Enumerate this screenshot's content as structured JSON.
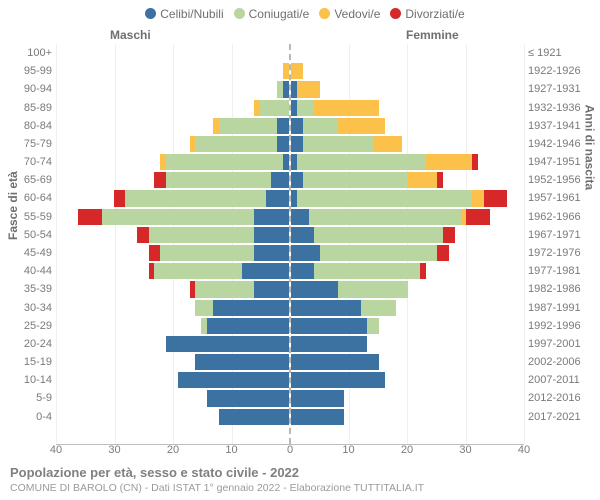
{
  "type": "population-pyramid-stacked",
  "legend": [
    {
      "label": "Celibi/Nubili",
      "color": "#3c72a2"
    },
    {
      "label": "Coniugati/e",
      "color": "#b9d6a0"
    },
    {
      "label": "Vedovi/e",
      "color": "#fcc14b"
    },
    {
      "label": "Divorziati/e",
      "color": "#d62829"
    }
  ],
  "header_male": "Maschi",
  "header_female": "Femmine",
  "y_left_title": "Fasce di età",
  "y_right_title": "Anni di nascita",
  "title": "Popolazione per età, sesso e stato civile - 2022",
  "subtitle": "COMUNE DI BAROLO (CN) - Dati ISTAT 1° gennaio 2022 - Elaborazione TUTTITALIA.IT",
  "x_axis": {
    "max": 40,
    "ticks": [
      40,
      30,
      20,
      10,
      0,
      10,
      20,
      30,
      40
    ]
  },
  "background_color": "#ffffff",
  "grid_color": "#efefef",
  "axis_color": "#bdbdbd",
  "label_color": "#7a7a7a",
  "label_fontsize": 11,
  "rows": [
    {
      "age": "100+",
      "born": "≤ 1921",
      "m": {
        "cel": 0,
        "con": 0,
        "ved": 0,
        "div": 0
      },
      "f": {
        "cel": 0,
        "con": 0,
        "ved": 0,
        "div": 0
      }
    },
    {
      "age": "95-99",
      "born": "1922-1926",
      "m": {
        "cel": 0,
        "con": 0,
        "ved": 1,
        "div": 0
      },
      "f": {
        "cel": 0,
        "con": 0,
        "ved": 2,
        "div": 0
      }
    },
    {
      "age": "90-94",
      "born": "1927-1931",
      "m": {
        "cel": 1,
        "con": 1,
        "ved": 0,
        "div": 0
      },
      "f": {
        "cel": 1,
        "con": 0,
        "ved": 4,
        "div": 0
      }
    },
    {
      "age": "85-89",
      "born": "1932-1936",
      "m": {
        "cel": 0,
        "con": 5,
        "ved": 1,
        "div": 0
      },
      "f": {
        "cel": 1,
        "con": 3,
        "ved": 11,
        "div": 0
      }
    },
    {
      "age": "80-84",
      "born": "1937-1941",
      "m": {
        "cel": 2,
        "con": 10,
        "ved": 1,
        "div": 0
      },
      "f": {
        "cel": 2,
        "con": 6,
        "ved": 8,
        "div": 0
      }
    },
    {
      "age": "75-79",
      "born": "1942-1946",
      "m": {
        "cel": 2,
        "con": 14,
        "ved": 1,
        "div": 0
      },
      "f": {
        "cel": 2,
        "con": 12,
        "ved": 5,
        "div": 0
      }
    },
    {
      "age": "70-74",
      "born": "1947-1951",
      "m": {
        "cel": 1,
        "con": 20,
        "ved": 1,
        "div": 0
      },
      "f": {
        "cel": 1,
        "con": 22,
        "ved": 8,
        "div": 1
      }
    },
    {
      "age": "65-69",
      "born": "1952-1956",
      "m": {
        "cel": 3,
        "con": 18,
        "ved": 0,
        "div": 2
      },
      "f": {
        "cel": 2,
        "con": 18,
        "ved": 5,
        "div": 1
      }
    },
    {
      "age": "60-64",
      "born": "1957-1961",
      "m": {
        "cel": 4,
        "con": 24,
        "ved": 0,
        "div": 2
      },
      "f": {
        "cel": 1,
        "con": 30,
        "ved": 2,
        "div": 4
      }
    },
    {
      "age": "55-59",
      "born": "1962-1966",
      "m": {
        "cel": 6,
        "con": 26,
        "ved": 0,
        "div": 4
      },
      "f": {
        "cel": 3,
        "con": 26,
        "ved": 1,
        "div": 4
      }
    },
    {
      "age": "50-54",
      "born": "1967-1971",
      "m": {
        "cel": 6,
        "con": 18,
        "ved": 0,
        "div": 2
      },
      "f": {
        "cel": 4,
        "con": 22,
        "ved": 0,
        "div": 2
      }
    },
    {
      "age": "45-49",
      "born": "1972-1976",
      "m": {
        "cel": 6,
        "con": 16,
        "ved": 0,
        "div": 2
      },
      "f": {
        "cel": 5,
        "con": 20,
        "ved": 0,
        "div": 2
      }
    },
    {
      "age": "40-44",
      "born": "1977-1981",
      "m": {
        "cel": 8,
        "con": 15,
        "ved": 0,
        "div": 1
      },
      "f": {
        "cel": 4,
        "con": 18,
        "ved": 0,
        "div": 1
      }
    },
    {
      "age": "35-39",
      "born": "1982-1986",
      "m": {
        "cel": 6,
        "con": 10,
        "ved": 0,
        "div": 1
      },
      "f": {
        "cel": 8,
        "con": 12,
        "ved": 0,
        "div": 0
      }
    },
    {
      "age": "30-34",
      "born": "1987-1991",
      "m": {
        "cel": 13,
        "con": 3,
        "ved": 0,
        "div": 0
      },
      "f": {
        "cel": 12,
        "con": 6,
        "ved": 0,
        "div": 0
      }
    },
    {
      "age": "25-29",
      "born": "1992-1996",
      "m": {
        "cel": 14,
        "con": 1,
        "ved": 0,
        "div": 0
      },
      "f": {
        "cel": 13,
        "con": 2,
        "ved": 0,
        "div": 0
      }
    },
    {
      "age": "20-24",
      "born": "1997-2001",
      "m": {
        "cel": 21,
        "con": 0,
        "ved": 0,
        "div": 0
      },
      "f": {
        "cel": 13,
        "con": 0,
        "ved": 0,
        "div": 0
      }
    },
    {
      "age": "15-19",
      "born": "2002-2006",
      "m": {
        "cel": 16,
        "con": 0,
        "ved": 0,
        "div": 0
      },
      "f": {
        "cel": 15,
        "con": 0,
        "ved": 0,
        "div": 0
      }
    },
    {
      "age": "10-14",
      "born": "2007-2011",
      "m": {
        "cel": 19,
        "con": 0,
        "ved": 0,
        "div": 0
      },
      "f": {
        "cel": 16,
        "con": 0,
        "ved": 0,
        "div": 0
      }
    },
    {
      "age": "5-9",
      "born": "2012-2016",
      "m": {
        "cel": 14,
        "con": 0,
        "ved": 0,
        "div": 0
      },
      "f": {
        "cel": 9,
        "con": 0,
        "ved": 0,
        "div": 0
      }
    },
    {
      "age": "0-4",
      "born": "2017-2021",
      "m": {
        "cel": 12,
        "con": 0,
        "ved": 0,
        "div": 0
      },
      "f": {
        "cel": 9,
        "con": 0,
        "ved": 0,
        "div": 0
      }
    }
  ]
}
